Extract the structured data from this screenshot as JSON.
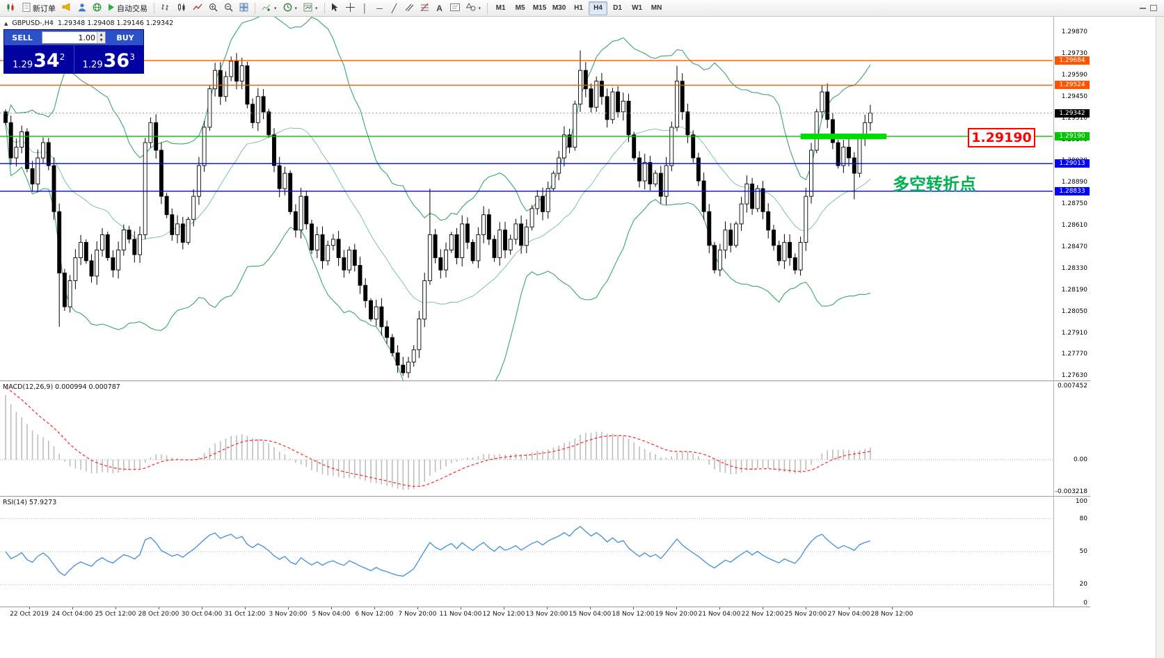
{
  "toolbar": {
    "new_order_label": "新订单",
    "auto_trading_label": "自动交易",
    "text_tool_label": "A",
    "timeframes": [
      "M1",
      "M5",
      "M15",
      "M30",
      "H1",
      "H4",
      "D1",
      "W1",
      "MN"
    ],
    "active_timeframe": "H4"
  },
  "trade_panel": {
    "symbol_header": "GBPUSD-,H4",
    "ohlc_header": "1.29348 1.29408 1.29146 1.29342",
    "sell_label": "SELL",
    "buy_label": "BUY",
    "volume_value": "1.00",
    "sell_price_prefix": "1.29",
    "sell_price_big": "34",
    "sell_price_sup": "2",
    "buy_price_prefix": "1.29",
    "buy_price_big": "36",
    "buy_price_sup": "3"
  },
  "annotations": {
    "price_box_label": "1.29190",
    "turning_point_label": "多空转折点"
  },
  "colors": {
    "panel_blue": "#0202a0",
    "button_blue": "#2b50c8",
    "hline_orange": "#ff5500",
    "hline_green": "#00c400",
    "thick_green": "#00dd00",
    "hline_blue": "#0000ff",
    "bollinger": "#3aa56c",
    "rsi_line": "#3e8ede",
    "macd_signal": "#ff2222",
    "macd_hist": "#bdbdbd",
    "annotation_red": "#ff0000",
    "annotation_green": "#00b050",
    "current_chip": "#000000"
  },
  "chart_data": [
    {
      "type": "candlestick",
      "title": "GBPUSD- H4",
      "y_range": [
        1.276,
        1.2997
      ],
      "y_axis_labels": [
        "1.29870",
        "1.29730",
        "1.29590",
        "1.29450",
        "1.29310",
        "1.29170",
        "1.29030",
        "1.28890",
        "1.28750",
        "1.28610",
        "1.28470",
        "1.28330",
        "1.28190",
        "1.28050",
        "1.27910",
        "1.27770",
        "1.27630"
      ],
      "x_axis_labels": [
        "22 Oct 2019",
        "24 Oct 04:00",
        "25 Oct 12:00",
        "28 Oct 20:00",
        "30 Oct 04:00",
        "31 Oct 12:00",
        "3 Nov 20:00",
        "5 Nov 04:00",
        "6 Nov 12:00",
        "7 Nov 20:00",
        "11 Nov 04:00",
        "12 Nov 12:00",
        "13 Nov 20:00",
        "15 Nov 04:00",
        "18 Nov 12:00",
        "19 Nov 20:00",
        "21 Nov 04:00",
        "22 Nov 12:00",
        "25 Nov 20:00",
        "27 Nov 04:00",
        "28 Nov 12:00"
      ],
      "current_price": 1.29342,
      "current_price_label": "1.29342",
      "first_open": 1.2935,
      "closes": [
        1.2928,
        1.2905,
        1.2912,
        1.2922,
        1.2898,
        1.2888,
        1.2905,
        1.2915,
        1.29,
        1.287,
        1.283,
        1.2808,
        1.2825,
        1.284,
        1.285,
        1.2838,
        1.2828,
        1.2845,
        1.2855,
        1.284,
        1.2832,
        1.2845,
        1.2858,
        1.2852,
        1.2842,
        1.2855,
        1.2915,
        1.2928,
        1.291,
        1.288,
        1.2868,
        1.2855,
        1.2862,
        1.285,
        1.2865,
        1.288,
        1.29,
        1.2925,
        1.295,
        1.2962,
        1.2945,
        1.2958,
        1.2968,
        1.2955,
        1.2965,
        1.294,
        1.2928,
        1.2945,
        1.2935,
        1.292,
        1.29,
        1.2885,
        1.2895,
        1.287,
        1.2858,
        1.288,
        1.2862,
        1.2845,
        1.2855,
        1.2838,
        1.2848,
        1.2852,
        1.284,
        1.2832,
        1.2845,
        1.2835,
        1.2822,
        1.2812,
        1.28,
        1.2808,
        1.2795,
        1.2788,
        1.2778,
        1.277,
        1.2765,
        1.2772,
        1.278,
        1.28,
        1.2825,
        1.2855,
        1.284,
        1.2832,
        1.2845,
        1.2855,
        1.284,
        1.2862,
        1.285,
        1.2838,
        1.2855,
        1.2868,
        1.2852,
        1.284,
        1.2858,
        1.2845,
        1.2852,
        1.2862,
        1.2848,
        1.286,
        1.2872,
        1.288,
        1.287,
        1.2885,
        1.2895,
        1.2905,
        1.292,
        1.2912,
        1.294,
        1.2962,
        1.295,
        1.2938,
        1.2955,
        1.2945,
        1.293,
        1.2948,
        1.2935,
        1.2942,
        1.292,
        1.2905,
        1.289,
        1.2902,
        1.2888,
        1.2895,
        1.288,
        1.29,
        1.2925,
        1.2955,
        1.2935,
        1.292,
        1.2905,
        1.289,
        1.287,
        1.2848,
        1.2832,
        1.2845,
        1.2858,
        1.2848,
        1.2862,
        1.2875,
        1.2888,
        1.2872,
        1.2885,
        1.287,
        1.2858,
        1.2848,
        1.2838,
        1.285,
        1.284,
        1.2832,
        1.285,
        1.288,
        1.291,
        1.2935,
        1.2948,
        1.293,
        1.2915,
        1.29,
        1.2912,
        1.2905,
        1.2895,
        1.2918,
        1.2928,
        1.29342
      ],
      "wick_overrides": {
        "10": {
          "low": 1.2795
        },
        "74": {
          "low": 1.2763
        },
        "79": {
          "high": 1.2885
        },
        "107": {
          "high": 1.2975
        },
        "125": {
          "high": 1.2965
        },
        "158": {
          "low": 1.2878
        }
      },
      "hlines": [
        {
          "price": 1.29684,
          "label": "1.29684",
          "color_key": "hline_orange"
        },
        {
          "price": 1.29524,
          "label": "1.29524",
          "color_key": "hline_orange"
        },
        {
          "price": 1.2919,
          "label": "1.29190",
          "color_key": "hline_green",
          "thick_from": 148,
          "thick_to": 164
        },
        {
          "price": 1.29013,
          "label": "1.29013",
          "color_key": "hline_blue"
        },
        {
          "price": 1.28833,
          "label": "1.28833",
          "color_key": "hline_blue"
        }
      ],
      "bollinger": {
        "period": 20,
        "deviation": 2
      }
    },
    {
      "type": "macd",
      "label": "MACD(12,26,9) 0.000994 0.000787",
      "fast": 12,
      "slow": 26,
      "signal": 9,
      "y_range": [
        -0.0036,
        0.0078
      ],
      "y_axis_labels": [
        {
          "value": 0.007452,
          "text": "0.007452"
        },
        {
          "value": 0,
          "text": "0.00"
        },
        {
          "value": -0.003218,
          "text": "-0.003218"
        }
      ]
    },
    {
      "type": "rsi",
      "label": "RSI(14) 57.9273",
      "period": 14,
      "y_range": [
        0,
        100
      ],
      "levels": [
        80,
        50,
        20
      ],
      "y_axis_labels": [
        {
          "value": 100,
          "text": "100"
        },
        {
          "value": 80,
          "text": "80"
        },
        {
          "value": 50,
          "text": "50"
        },
        {
          "value": 20,
          "text": "20"
        },
        {
          "value": 0,
          "text": "0"
        }
      ]
    }
  ]
}
